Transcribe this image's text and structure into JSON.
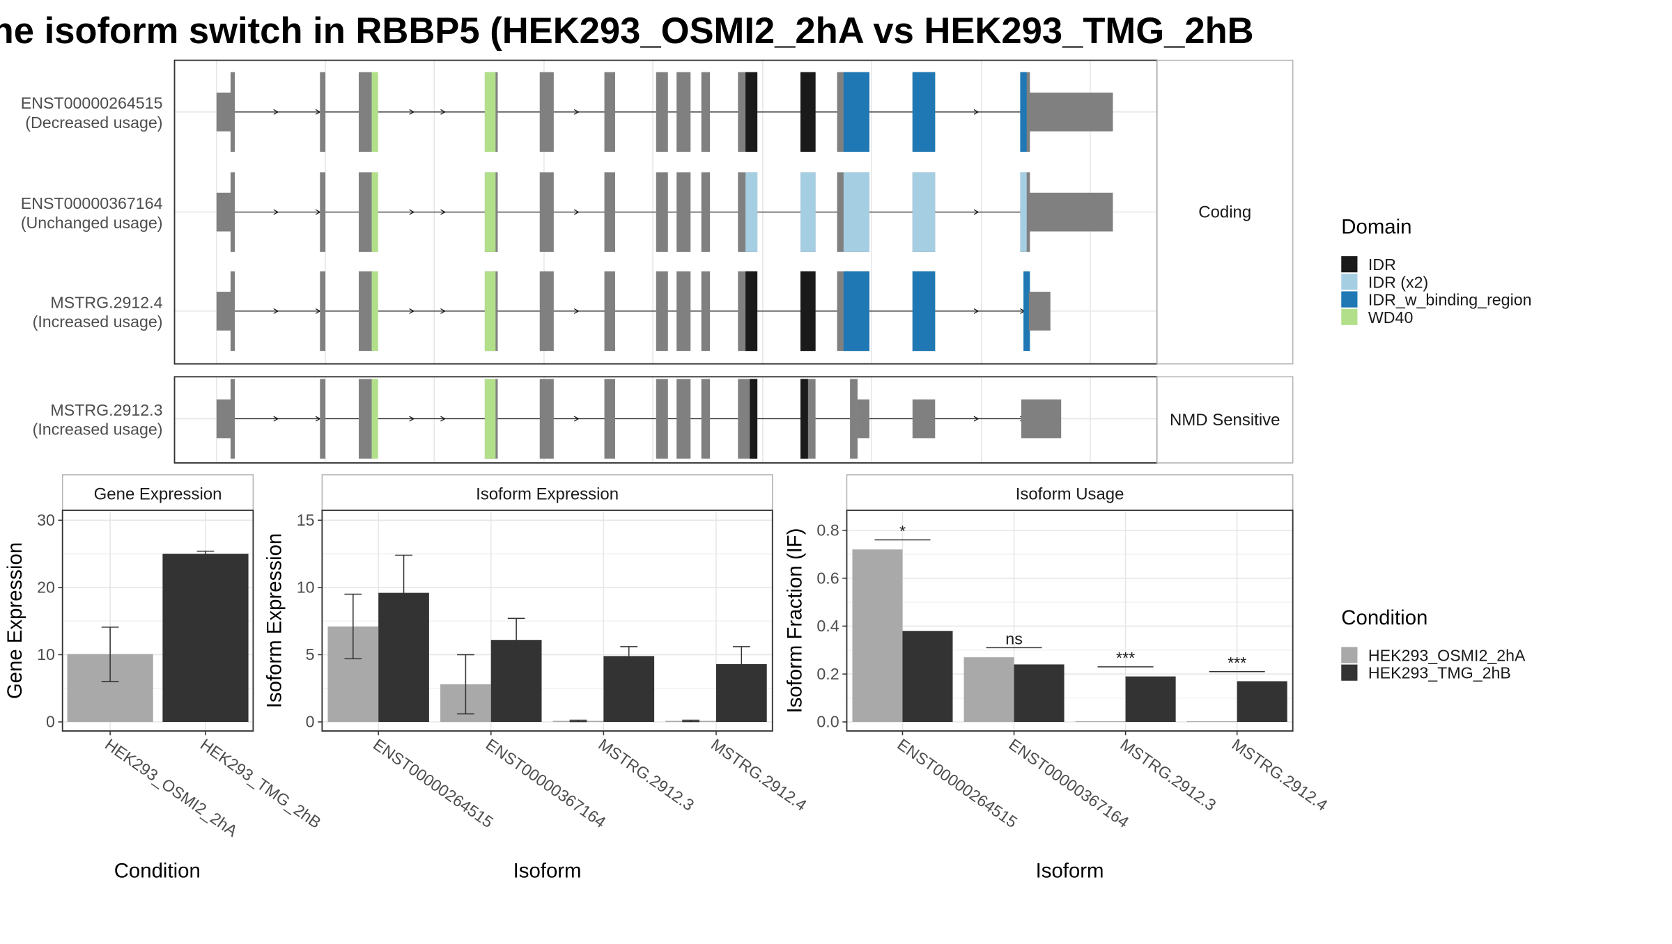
{
  "title": "he isoform switch in RBBP5 (HEK293_OSMI2_2hA vs HEK293_TMG_2hB",
  "colors": {
    "exon": "#808080",
    "IDR": "#1a1a1a",
    "IDR (x2)": "#a6cee3",
    "IDR_w_binding_region": "#1f78b4",
    "WD40": "#b2df8a",
    "cond1": "#a9a9a9",
    "cond2": "#333333"
  },
  "isoform_panels": [
    {
      "strip": "Coding",
      "rows": [
        {
          "id": "ENST00000264515",
          "usage": "(Decreased usage)",
          "type": "coding_full"
        },
        {
          "id": "ENST00000367164",
          "usage": "(Unchanged usage)",
          "type": "coding_light"
        },
        {
          "id": "MSTRG.2912.4",
          "usage": "(Increased usage)",
          "type": "coding_short"
        }
      ]
    },
    {
      "strip": "NMD Sensitive",
      "rows": [
        {
          "id": "MSTRG.2912.3",
          "usage": "(Increased usage)",
          "type": "nmd"
        }
      ]
    }
  ],
  "legend_domain": {
    "title": "Domain",
    "items": [
      "IDR",
      "IDR (x2)",
      "IDR_w_binding_region",
      "WD40"
    ]
  },
  "legend_condition": {
    "title": "Condition",
    "items": [
      "HEK293_OSMI2_2hA",
      "HEK293_TMG_2hB"
    ]
  },
  "chart_data": [
    {
      "type": "bar",
      "title": "Gene Expression",
      "xlabel": "Condition",
      "ylabel": "Gene Expression",
      "ylim": [
        0,
        31
      ],
      "yticks": [
        0,
        10,
        20,
        30
      ],
      "categories": [
        "HEK293_OSMI2_2hA",
        "HEK293_TMG_2hB"
      ],
      "values": [
        10.1,
        25.0
      ],
      "error_low": [
        6.0,
        24.6
      ],
      "error_high": [
        14.1,
        25.4
      ]
    },
    {
      "type": "bar",
      "title": "Isoform Expression",
      "xlabel": "Isoform",
      "ylabel": "Isoform Expression",
      "ylim": [
        0,
        15.5
      ],
      "yticks": [
        0,
        5,
        10,
        15
      ],
      "categories": [
        "ENST00000264515",
        "ENST00000367164",
        "MSTRG.2912.3",
        "MSTRG.2912.4"
      ],
      "series": [
        {
          "name": "HEK293_OSMI2_2hA",
          "values": [
            7.1,
            2.8,
            0.08,
            0.08
          ],
          "error_low": [
            4.7,
            0.6,
            0.03,
            0.03
          ],
          "error_high": [
            9.5,
            5.0,
            0.13,
            0.13
          ]
        },
        {
          "name": "HEK293_TMG_2hB",
          "values": [
            9.6,
            6.1,
            4.9,
            4.3
          ],
          "error_low": [
            6.8,
            4.5,
            4.2,
            3.0
          ],
          "error_high": [
            12.4,
            7.7,
            5.6,
            5.6
          ]
        }
      ]
    },
    {
      "type": "bar",
      "title": "Isoform Usage",
      "xlabel": "Isoform",
      "ylabel": "Isoform Fraction (IF)",
      "ylim": [
        0,
        0.87
      ],
      "yticks": [
        0.0,
        0.2,
        0.4,
        0.6,
        0.8
      ],
      "ytick_labels": [
        "0.0",
        "0.2",
        "0.4",
        "0.6",
        "0.8"
      ],
      "categories": [
        "ENST00000264515",
        "ENST00000367164",
        "MSTRG.2912.3",
        "MSTRG.2912.4"
      ],
      "series": [
        {
          "name": "HEK293_OSMI2_2hA",
          "values": [
            0.72,
            0.27,
            0.002,
            0.002
          ]
        },
        {
          "name": "HEK293_TMG_2hB",
          "values": [
            0.38,
            0.24,
            0.19,
            0.17
          ]
        }
      ],
      "significance": [
        {
          "label": "*",
          "y": 0.76
        },
        {
          "label": "ns",
          "y": 0.31
        },
        {
          "label": "***",
          "y": 0.23
        },
        {
          "label": "***",
          "y": 0.21
        }
      ]
    }
  ]
}
